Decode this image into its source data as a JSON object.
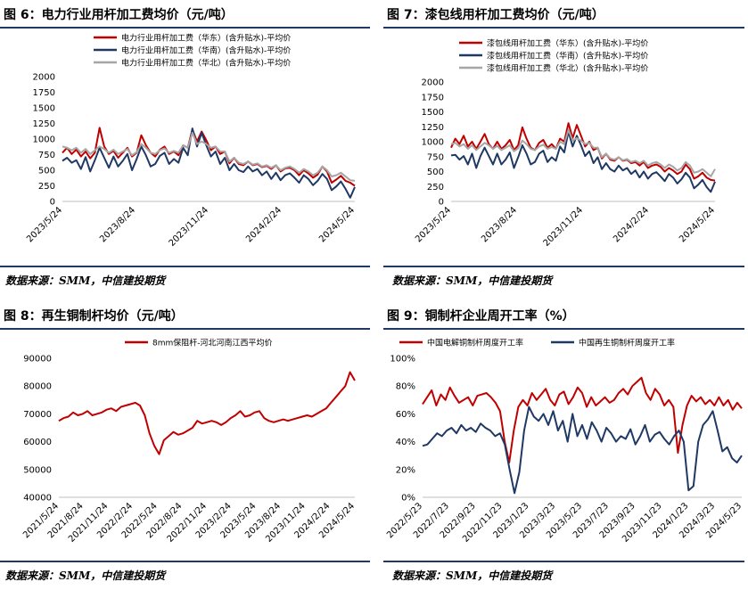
{
  "source_text": "数据来源：SMM，中信建投期货",
  "colors": {
    "red": "#c00000",
    "navy": "#1f3864",
    "gray": "#a6a6a6",
    "rule": "#1f3864"
  },
  "chart_data": [
    {
      "type": "line",
      "title": "图 6：电力行业用杆加工费均价（元/吨）",
      "xlabel": "",
      "ylabel": "",
      "ylim": [
        0,
        2000
      ],
      "yticks": [
        "2000",
        "1750",
        "1500",
        "1250",
        "1000",
        "750",
        "500",
        "250",
        "0"
      ],
      "ytick_values": [
        2000,
        1750,
        1500,
        1250,
        1000,
        750,
        500,
        250,
        0
      ],
      "xticks": [
        "2023/5/24",
        "2023/8/24",
        "2023/11/24",
        "2024/2/24",
        "2024/5/24"
      ],
      "legend_position": "top",
      "series": [
        {
          "name": "电力行业用杆加工费（华东）(含升贴水)-平均价",
          "color": "#c00000",
          "values": [
            780,
            860,
            760,
            830,
            720,
            800,
            690,
            780,
            1180,
            880,
            760,
            810,
            700,
            780,
            860,
            720,
            780,
            1060,
            900,
            780,
            720,
            830,
            880,
            760,
            800,
            740,
            900,
            860,
            1150,
            960,
            1120,
            980,
            820,
            880,
            760,
            800,
            610,
            700,
            600,
            580,
            640,
            580,
            600,
            550,
            570,
            520,
            580,
            480,
            530,
            540,
            500,
            420,
            500,
            450,
            380,
            430,
            560,
            480,
            300,
            350,
            410,
            330,
            300,
            250
          ]
        },
        {
          "name": "电力行业用杆加工费（华南）(含升贴水)-平均价",
          "color": "#1f3864",
          "values": [
            650,
            700,
            620,
            660,
            520,
            710,
            480,
            660,
            860,
            700,
            540,
            720,
            560,
            650,
            760,
            500,
            680,
            880,
            740,
            560,
            600,
            730,
            780,
            600,
            680,
            620,
            860,
            740,
            1170,
            880,
            1100,
            900,
            720,
            800,
            600,
            700,
            500,
            600,
            500,
            470,
            560,
            480,
            520,
            420,
            480,
            360,
            460,
            340,
            420,
            450,
            380,
            300,
            420,
            360,
            260,
            330,
            440,
            360,
            180,
            240,
            320,
            200,
            60,
            230
          ]
        },
        {
          "name": "电力行业用杆加工费（华北）(含升贴水)-平均价",
          "color": "#a6a6a6",
          "values": [
            880,
            860,
            820,
            860,
            780,
            840,
            760,
            820,
            880,
            840,
            780,
            830,
            760,
            800,
            840,
            740,
            790,
            920,
            860,
            780,
            760,
            820,
            850,
            780,
            810,
            780,
            900,
            860,
            1100,
            920,
            960,
            920,
            860,
            880,
            800,
            800,
            640,
            700,
            620,
            600,
            640,
            590,
            610,
            560,
            580,
            540,
            580,
            500,
            540,
            560,
            520,
            460,
            520,
            480,
            420,
            460,
            560,
            500,
            400,
            420,
            460,
            400,
            340,
            330
          ]
        }
      ]
    },
    {
      "type": "line",
      "title": "图 7：漆包线用杆加工费均价（元/吨）",
      "xlabel": "",
      "ylabel": "",
      "ylim": [
        0,
        2000
      ],
      "yticks": [
        "2000",
        "1750",
        "1500",
        "1250",
        "1000",
        "750",
        "500",
        "250",
        "0"
      ],
      "ytick_values": [
        2000,
        1750,
        1500,
        1250,
        1000,
        750,
        500,
        250,
        0
      ],
      "xticks": [
        "2023/5/24",
        "2023/8/24",
        "2023/11/24",
        "2024/2/24",
        "2024/5/24"
      ],
      "legend_position": "top",
      "series": [
        {
          "name": "漆包线用杆加工费（华东）(含升贴水)-平均价",
          "color": "#c00000",
          "values": [
            900,
            1050,
            960,
            1100,
            920,
            1000,
            880,
            1000,
            1130,
            960,
            880,
            1000,
            880,
            940,
            1030,
            860,
            940,
            1240,
            1050,
            900,
            860,
            980,
            1030,
            900,
            960,
            880,
            1050,
            1000,
            1310,
            1060,
            1280,
            1100,
            920,
            1000,
            860,
            900,
            720,
            800,
            700,
            680,
            740,
            680,
            700,
            640,
            660,
            600,
            660,
            560,
            600,
            620,
            580,
            500,
            560,
            520,
            460,
            500,
            620,
            540,
            380,
            420,
            480,
            400,
            360,
            350
          ]
        },
        {
          "name": "漆包线用杆加工费（华南）(含升贴水)-平均价",
          "color": "#1f3864",
          "values": [
            770,
            780,
            700,
            760,
            620,
            800,
            560,
            760,
            900,
            760,
            620,
            800,
            620,
            700,
            820,
            560,
            740,
            940,
            800,
            620,
            660,
            800,
            850,
            660,
            740,
            680,
            920,
            820,
            1170,
            920,
            1100,
            940,
            760,
            840,
            640,
            740,
            540,
            640,
            540,
            500,
            600,
            520,
            560,
            460,
            520,
            400,
            500,
            380,
            460,
            490,
            420,
            340,
            460,
            400,
            300,
            370,
            480,
            400,
            220,
            280,
            360,
            240,
            160,
            330
          ]
        },
        {
          "name": "漆包线用杆加工费（华北）(含升贴水)-平均价",
          "color": "#a6a6a6",
          "values": [
            960,
            980,
            920,
            960,
            880,
            940,
            860,
            920,
            980,
            940,
            880,
            930,
            860,
            900,
            940,
            840,
            890,
            1020,
            960,
            880,
            860,
            920,
            950,
            880,
            910,
            880,
            1000,
            960,
            1200,
            1020,
            1060,
            1020,
            960,
            980,
            900,
            900,
            740,
            800,
            720,
            700,
            740,
            690,
            710,
            660,
            680,
            640,
            680,
            600,
            640,
            660,
            620,
            560,
            620,
            580,
            520,
            560,
            660,
            600,
            480,
            500,
            540,
            480,
            420,
            540
          ]
        }
      ]
    },
    {
      "type": "line",
      "title": "图 8：再生铜制杆均价（元/吨）",
      "xlabel": "",
      "ylabel": "",
      "ylim": [
        40000,
        90000
      ],
      "yticks": [
        "90000",
        "80000",
        "70000",
        "60000",
        "50000",
        "40000"
      ],
      "ytick_values": [
        90000,
        80000,
        70000,
        60000,
        50000,
        40000
      ],
      "xticks": [
        "2021/5/24",
        "2021/8/24",
        "2021/11/24",
        "2022/2/24",
        "2022/5/24",
        "2022/8/24",
        "2022/11/24",
        "2023/2/24",
        "2023/5/24",
        "2023/8/24",
        "2023/11/24",
        "2024/2/24",
        "2024/5/24"
      ],
      "legend_position": "top",
      "series": [
        {
          "name": "8mm保阻杆-河北河南江西平均价",
          "color": "#c00000",
          "values": [
            67500,
            68500,
            69000,
            70500,
            69500,
            70000,
            71000,
            69500,
            70000,
            70500,
            71500,
            72000,
            71000,
            72500,
            73000,
            73500,
            74000,
            73000,
            69500,
            63000,
            58500,
            55500,
            60500,
            62000,
            63500,
            62500,
            63000,
            64000,
            65000,
            67500,
            66500,
            67000,
            67500,
            67000,
            66000,
            67000,
            68500,
            69500,
            71000,
            69000,
            69500,
            70500,
            71000,
            68500,
            67500,
            67000,
            67500,
            68000,
            67500,
            68000,
            68500,
            69000,
            69500,
            69000,
            70000,
            71000,
            72000,
            74000,
            76000,
            78000,
            80000,
            85000,
            82000
          ]
        }
      ]
    },
    {
      "type": "line",
      "title": "图 9：铜制杆企业周开工率（%）",
      "xlabel": "",
      "ylabel": "",
      "ylim": [
        0,
        100
      ],
      "yticks": [
        "100%",
        "80%",
        "60%",
        "40%",
        "20%",
        "0%"
      ],
      "ytick_values": [
        100,
        80,
        60,
        40,
        20,
        0
      ],
      "xticks": [
        "2022/5/23",
        "2022/7/23",
        "2022/9/23",
        "2022/11/23",
        "2023/1/23",
        "2023/3/23",
        "2023/5/23",
        "2023/7/23",
        "2023/9/23",
        "2023/11/23",
        "2024/1/23",
        "2024/3/23",
        "2024/5/23"
      ],
      "legend_position": "top",
      "series": [
        {
          "name": "中国电解铜制杆周度开工率",
          "color": "#c00000",
          "values": [
            67,
            72,
            77,
            66,
            74,
            70,
            79,
            73,
            68,
            70,
            72,
            66,
            73,
            74,
            75,
            72,
            68,
            62,
            40,
            25,
            48,
            65,
            70,
            66,
            75,
            70,
            74,
            78,
            70,
            66,
            74,
            76,
            67,
            72,
            79,
            75,
            65,
            72,
            66,
            69,
            72,
            68,
            70,
            75,
            78,
            74,
            80,
            83,
            86,
            75,
            70,
            78,
            74,
            66,
            70,
            65,
            32,
            52,
            66,
            73,
            69,
            72,
            67,
            70,
            66,
            72,
            66,
            70,
            63,
            68,
            64
          ]
        },
        {
          "name": "中国再生铜制杆周度开工率",
          "color": "#1f3864",
          "values": [
            37,
            38,
            42,
            46,
            44,
            48,
            50,
            46,
            52,
            48,
            50,
            47,
            53,
            50,
            48,
            44,
            46,
            38,
            20,
            3,
            18,
            48,
            65,
            58,
            55,
            60,
            52,
            62,
            48,
            55,
            40,
            60,
            44,
            52,
            42,
            54,
            48,
            40,
            50,
            46,
            40,
            44,
            42,
            49,
            38,
            44,
            52,
            40,
            45,
            47,
            42,
            38,
            44,
            48,
            40,
            5,
            8,
            40,
            52,
            56,
            62,
            48,
            33,
            36,
            28,
            25,
            30
          ]
        }
      ]
    }
  ]
}
